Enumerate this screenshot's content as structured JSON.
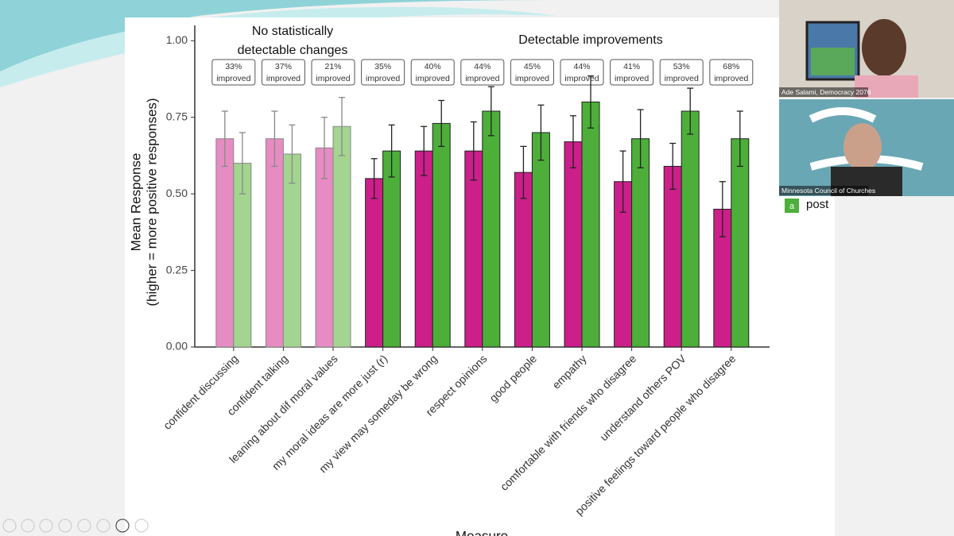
{
  "chart_data": {
    "type": "bar",
    "ylabel": [
      "Mean Response",
      "(higher = more positive responses)"
    ],
    "xlabel": "Measure",
    "group_labels": [
      {
        "lines": [
          "No statistically",
          "detectable changes"
        ]
      },
      {
        "lines": [
          "Detectable improvements"
        ]
      }
    ],
    "annotations": [
      {
        "lines": [
          "33%",
          "improved"
        ]
      },
      {
        "lines": [
          "37%",
          "improved"
        ]
      },
      {
        "lines": [
          "21%",
          "improved"
        ]
      },
      {
        "lines": [
          "35%",
          "improved"
        ]
      },
      {
        "lines": [
          "40%",
          "improved"
        ]
      },
      {
        "lines": [
          "44%",
          "improved"
        ]
      },
      {
        "lines": [
          "45%",
          "improved"
        ]
      },
      {
        "lines": [
          "44%",
          "improved"
        ]
      },
      {
        "lines": [
          "41%",
          "improved"
        ]
      },
      {
        "lines": [
          "53%",
          "improved"
        ]
      },
      {
        "lines": [
          "68%",
          "improved"
        ]
      }
    ],
    "categories": [
      "confident discussing",
      "confident talking",
      "leaning about dif moral values",
      "my moral ideas are more just (r)",
      "my view may someday be wrong",
      "respect opinions",
      "good people",
      "empathy",
      "comfortable with friends who disagree",
      "understand others POV",
      "positive feelings toward people who disagree"
    ],
    "series": [
      {
        "colors": [
          "#e68cc2",
          "#e68cc2",
          "#e68cc2",
          "#cc1f8a",
          "#cc1f8a",
          "#cc1f8a",
          "#cc1f8a",
          "#cc1f8a",
          "#cc1f8a",
          "#cc1f8a",
          "#cc1f8a"
        ],
        "values": [
          0.68,
          0.68,
          0.65,
          0.55,
          0.64,
          0.64,
          0.57,
          0.67,
          0.54,
          0.59,
          0.45
        ],
        "errors": [
          0.09,
          0.09,
          0.1,
          0.065,
          0.08,
          0.095,
          0.085,
          0.085,
          0.1,
          0.075,
          0.09
        ]
      },
      {
        "name": "post",
        "legend_key": "a",
        "colors": [
          "#a3d490",
          "#a3d490",
          "#a3d490",
          "#4daf3a",
          "#4daf3a",
          "#4daf3a",
          "#4daf3a",
          "#4daf3a",
          "#4daf3a",
          "#4daf3a",
          "#4daf3a"
        ],
        "values": [
          0.6,
          0.63,
          0.72,
          0.64,
          0.73,
          0.77,
          0.7,
          0.8,
          0.68,
          0.77,
          0.68
        ],
        "errors": [
          0.1,
          0.095,
          0.095,
          0.085,
          0.075,
          0.08,
          0.09,
          0.085,
          0.095,
          0.075,
          0.09
        ]
      }
    ],
    "ylim": [
      0,
      1.05
    ],
    "yticks": [
      {
        "value": 0,
        "label": "0.00"
      },
      {
        "value": 0.25,
        "label": "0.25"
      },
      {
        "value": 0.5,
        "label": "0.50"
      },
      {
        "value": 0.75,
        "label": "0.75"
      },
      {
        "value": 1,
        "label": "1.00"
      }
    ]
  },
  "video": {
    "participants": [
      "Ade Salami, Democracy 2076",
      "Minnesota Council of Churches"
    ]
  }
}
